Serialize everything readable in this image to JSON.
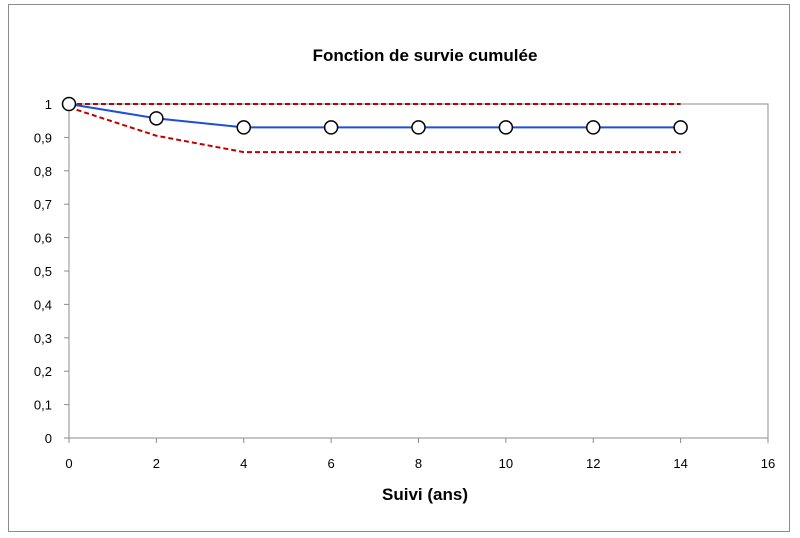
{
  "chart_data": {
    "type": "line",
    "title": "Fonction de survie cumulée",
    "xlabel": "Suivi (ans)",
    "ylabel": "",
    "xlim": [
      0,
      16
    ],
    "ylim": [
      0,
      1
    ],
    "x_ticks": [
      "0",
      "2",
      "4",
      "6",
      "8",
      "10",
      "12",
      "14",
      "16"
    ],
    "y_ticks": [
      "0",
      "0,1",
      "0,2",
      "0,3",
      "0,4",
      "0,5",
      "0,6",
      "0,7",
      "0,8",
      "0,9",
      "1"
    ],
    "grid": false,
    "series": [
      {
        "style": "solid-markers",
        "color": "#1f4fd8",
        "x": [
          0,
          2,
          4,
          6,
          8,
          10,
          12,
          14
        ],
        "y": [
          1,
          0.957,
          0.93,
          0.93,
          0.93,
          0.93,
          0.93,
          0.93
        ]
      },
      {
        "style": "dashed",
        "color": "#c00000",
        "x": [
          0,
          2,
          4,
          6,
          8,
          10,
          12,
          14
        ],
        "y": [
          1,
          1,
          1,
          1,
          1,
          1,
          1,
          1
        ]
      },
      {
        "style": "dashed",
        "color": "#c00000",
        "x": [
          0,
          2,
          4,
          6,
          8,
          10,
          12,
          14
        ],
        "y": [
          0.99,
          0.905,
          0.856,
          0.856,
          0.856,
          0.856,
          0.856,
          0.856
        ]
      }
    ]
  }
}
